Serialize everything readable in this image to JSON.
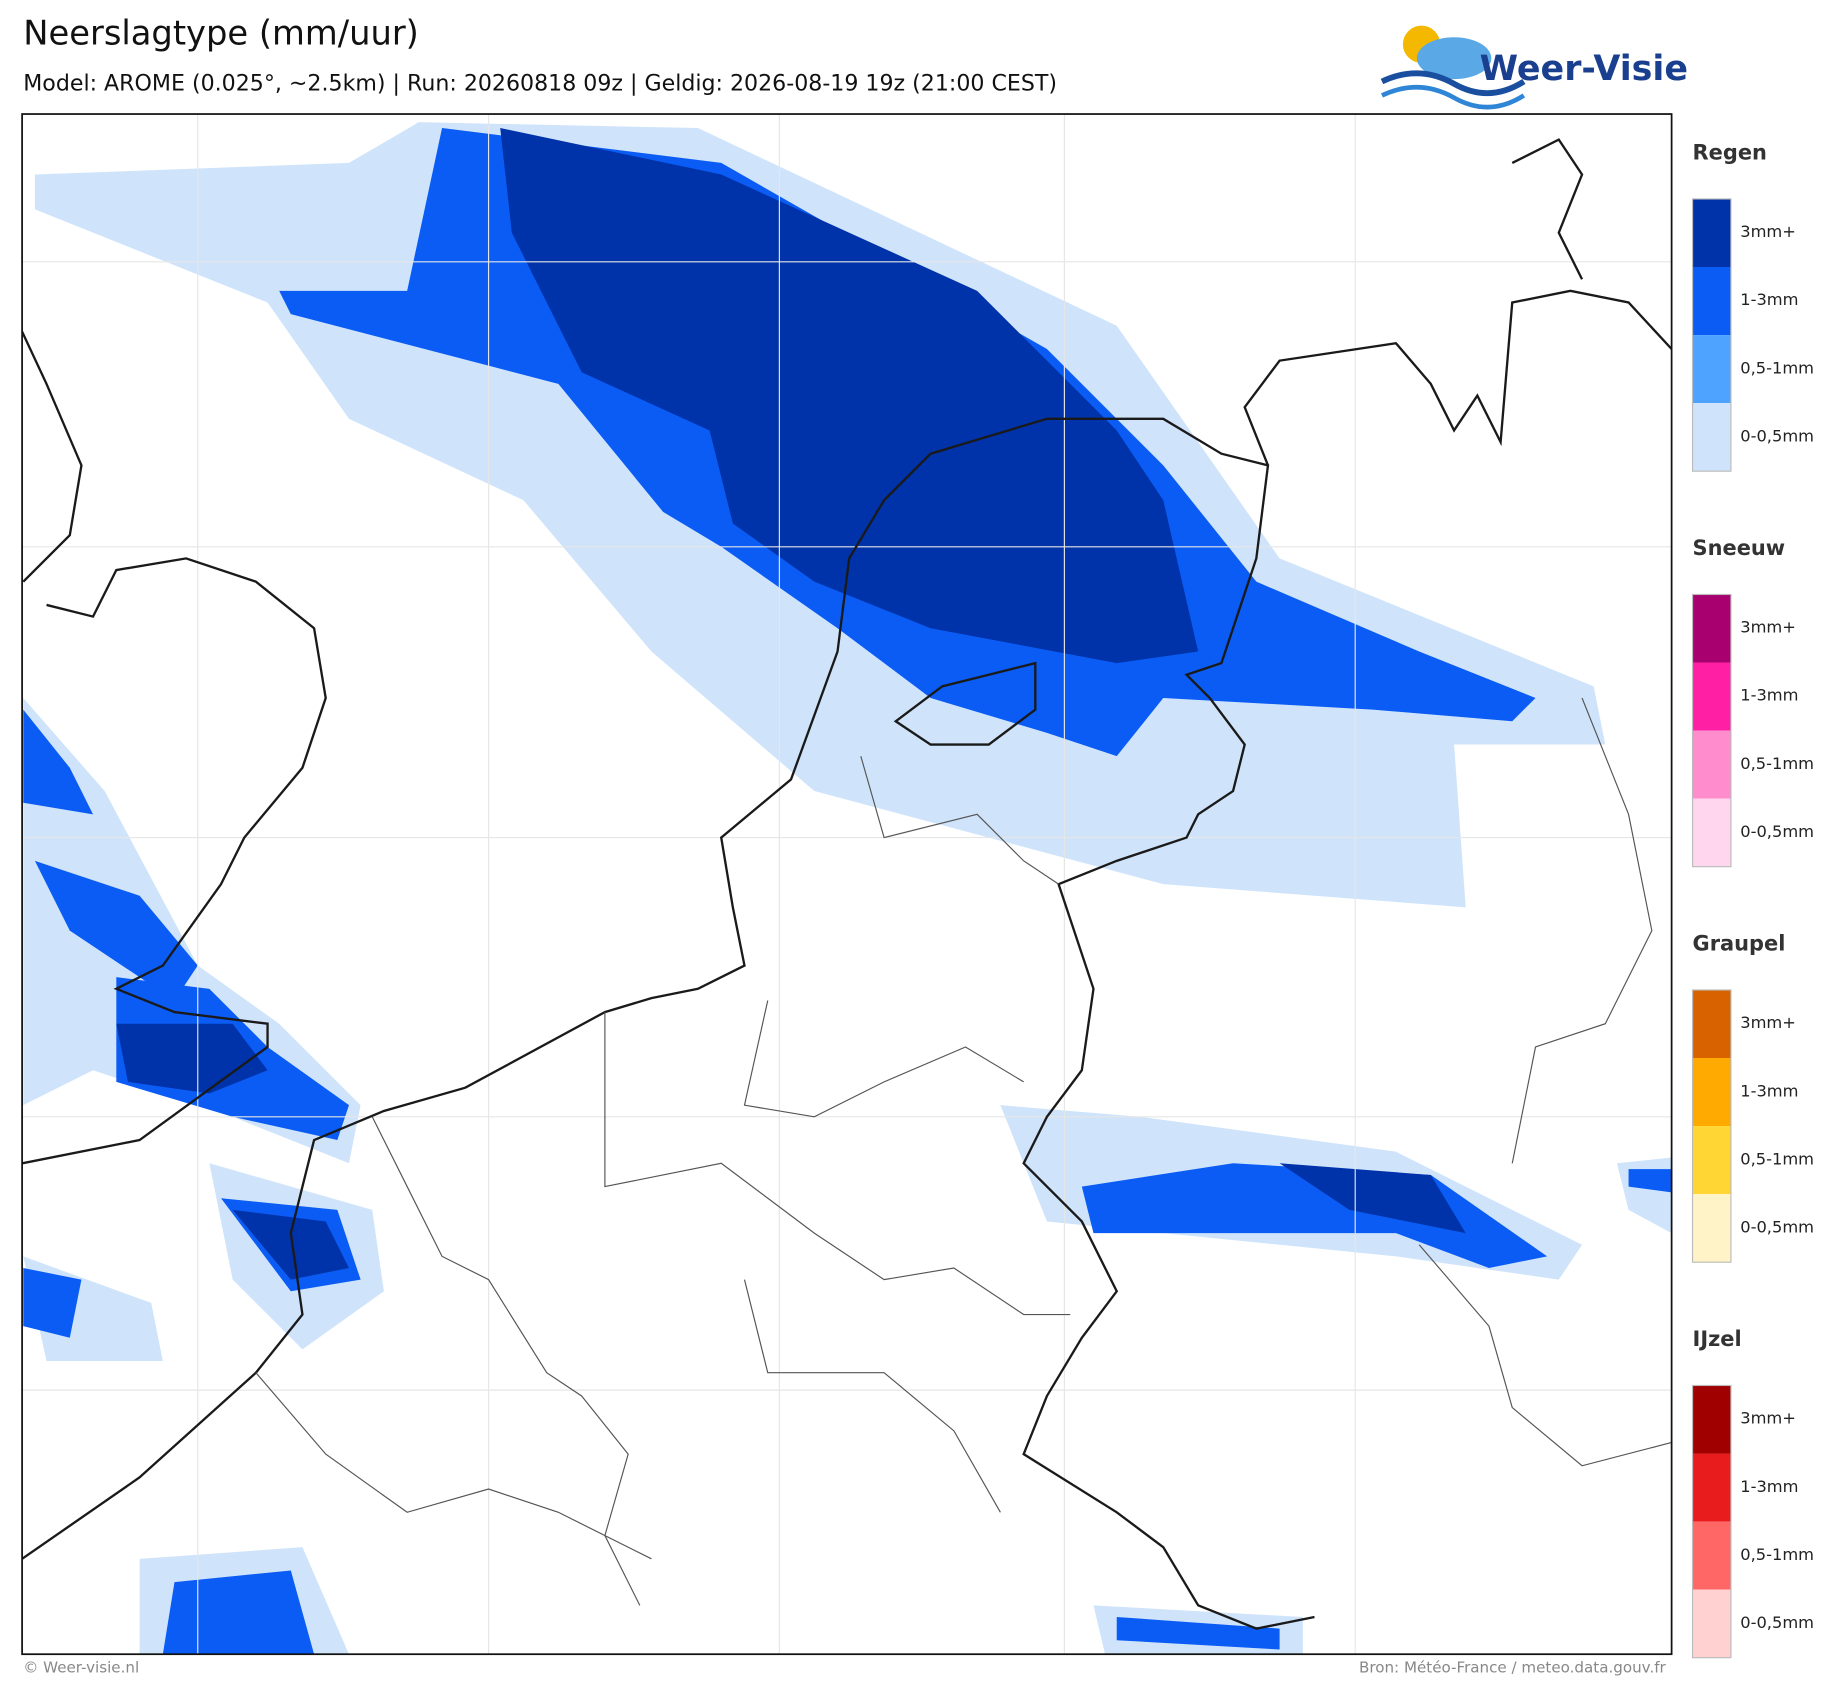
{
  "header": {
    "title": "Neerslagtype (mm/uur)",
    "subtitle": "Model: AROME (0.025°, ~2.5km)  |  Run: 20260818 09z  |  Geldig: 2026-08-19 19z (21:00 CEST)",
    "logo": "Weer-Visie"
  },
  "legend": {
    "groups": [
      {
        "title": "Regen",
        "colors": [
          "#0033aa",
          "#0a5cf5",
          "#4da3ff",
          "#cfe4fb"
        ],
        "labels": [
          "3mm+",
          "1-3mm",
          "0,5-1mm",
          "0-0,5mm"
        ]
      },
      {
        "title": "Sneeuw",
        "colors": [
          "#a8006e",
          "#ff1fa5",
          "#ff8ccd",
          "#ffd6ee"
        ],
        "labels": [
          "3mm+",
          "1-3mm",
          "0,5-1mm",
          "0-0,5mm"
        ]
      },
      {
        "title": "Graupel",
        "colors": [
          "#d96200",
          "#ffaa00",
          "#ffd633",
          "#fff3c7"
        ],
        "labels": [
          "3mm+",
          "1-3mm",
          "0,5-1mm",
          "0-0,5mm"
        ]
      },
      {
        "title": "IJzel",
        "colors": [
          "#a00000",
          "#e81c1c",
          "#ff6666",
          "#ffd1d1"
        ],
        "labels": [
          "3mm+",
          "1-3mm",
          "0,5-1mm",
          "0-0,5mm"
        ]
      }
    ]
  },
  "footer": {
    "left": "© Weer-visie.nl",
    "right": "Bron: Météo-France / meteo.data.gouv.fr"
  }
}
